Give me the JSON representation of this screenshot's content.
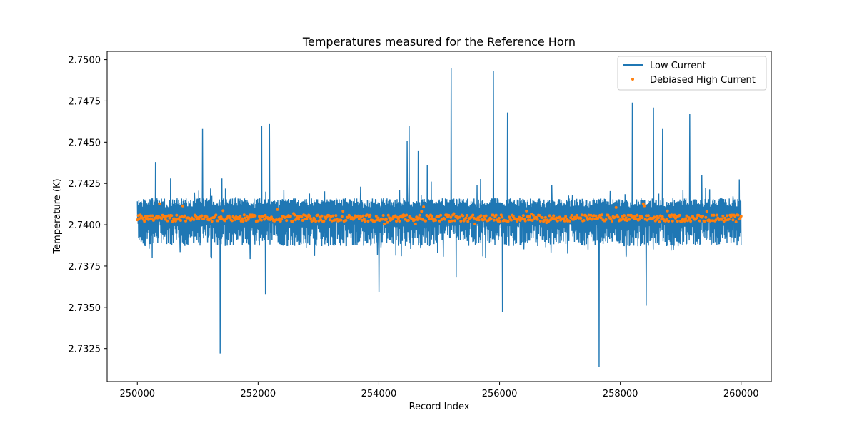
{
  "chart_data": {
    "type": "line",
    "title": "Temperatures measured for the Reference Horn",
    "xlabel": "Record Index",
    "ylabel": "Temperature (K)",
    "xlim": [
      249500,
      260500
    ],
    "ylim": [
      2.7305,
      2.7505
    ],
    "x_ticks": [
      250000,
      252000,
      254000,
      256000,
      258000,
      260000
    ],
    "x_tick_labels": [
      "250000",
      "252000",
      "254000",
      "256000",
      "258000",
      "260000"
    ],
    "y_ticks": [
      2.7325,
      2.735,
      2.7375,
      2.74,
      2.7425,
      2.745,
      2.7475,
      2.75
    ],
    "y_tick_labels": [
      "2.7325",
      "2.7350",
      "2.7375",
      "2.7400",
      "2.7425",
      "2.7450",
      "2.7475",
      "2.7500"
    ],
    "legend_position": "top-right",
    "series": [
      {
        "name": "Low Current",
        "kind": "line",
        "color": "#1f77b4",
        "x_range": [
          250000,
          260000
        ],
        "baseline": 2.7404,
        "band_low": 2.7387,
        "band_high": 2.7416,
        "spikes": [
          {
            "x": 250300,
            "y": 2.7438
          },
          {
            "x": 250550,
            "y": 2.7428
          },
          {
            "x": 251080,
            "y": 2.7458
          },
          {
            "x": 251370,
            "y": 2.7322
          },
          {
            "x": 251400,
            "y": 2.7428
          },
          {
            "x": 252060,
            "y": 2.746
          },
          {
            "x": 252120,
            "y": 2.7358
          },
          {
            "x": 252190,
            "y": 2.7461
          },
          {
            "x": 254000,
            "y": 2.7359
          },
          {
            "x": 254470,
            "y": 2.7451
          },
          {
            "x": 254500,
            "y": 2.746
          },
          {
            "x": 254650,
            "y": 2.7445
          },
          {
            "x": 254800,
            "y": 2.7436
          },
          {
            "x": 255200,
            "y": 2.7495
          },
          {
            "x": 255280,
            "y": 2.7368
          },
          {
            "x": 255900,
            "y": 2.7493
          },
          {
            "x": 256050,
            "y": 2.7347
          },
          {
            "x": 256130,
            "y": 2.7468
          },
          {
            "x": 257650,
            "y": 2.7314
          },
          {
            "x": 258200,
            "y": 2.7474
          },
          {
            "x": 258430,
            "y": 2.7351
          },
          {
            "x": 258550,
            "y": 2.7471
          },
          {
            "x": 258700,
            "y": 2.7458
          },
          {
            "x": 259150,
            "y": 2.7467
          },
          {
            "x": 259350,
            "y": 2.743
          }
        ]
      },
      {
        "name": "Debiased High Current",
        "kind": "scatter",
        "color": "#ff7f0e",
        "x_range": [
          250000,
          260000
        ],
        "center": 2.7404,
        "spread": 0.0004,
        "points_count": 600
      }
    ]
  }
}
